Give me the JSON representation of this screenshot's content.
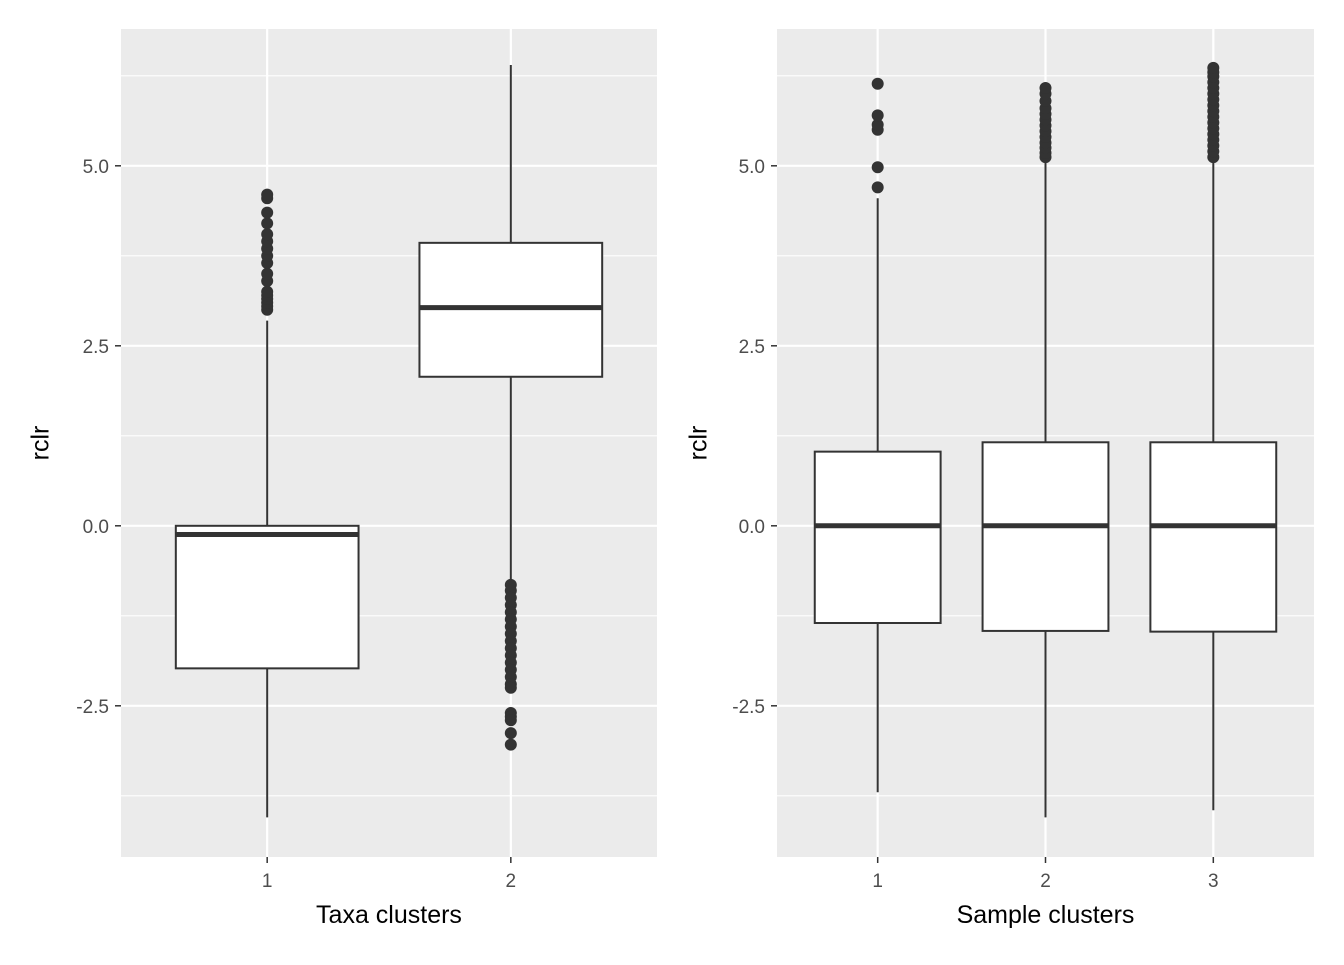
{
  "chart_data": [
    {
      "type": "boxplot",
      "xlabel": "Taxa clusters",
      "ylabel": "rclr",
      "ylim": [
        -4.6,
        6.9
      ],
      "yticks": [
        -2.5,
        0.0,
        2.5,
        5.0
      ],
      "ytick_labels": [
        "-2.5",
        "0.0",
        "2.5",
        "5.0"
      ],
      "categories": [
        "1",
        "2"
      ],
      "boxes": [
        {
          "category": "1",
          "q1": -1.98,
          "median": -0.12,
          "q3": 0.0,
          "whisker_low": -4.05,
          "whisker_high": 2.85,
          "outliers": [
            3.0,
            3.05,
            3.1,
            3.15,
            3.2,
            3.25,
            3.4,
            3.5,
            3.65,
            3.75,
            3.85,
            3.95,
            4.05,
            4.2,
            4.35,
            4.55,
            4.6
          ]
        },
        {
          "category": "2",
          "q1": 2.07,
          "median": 3.03,
          "q3": 3.93,
          "whisker_low": -0.75,
          "whisker_high": 6.4,
          "outliers": [
            -0.82,
            -0.9,
            -1.0,
            -1.1,
            -1.2,
            -1.3,
            -1.4,
            -1.5,
            -1.6,
            -1.7,
            -1.8,
            -1.9,
            -2.0,
            -2.1,
            -2.2,
            -2.25,
            -2.6,
            -2.65,
            -2.7,
            -2.88,
            -3.04
          ]
        }
      ],
      "grid": true
    },
    {
      "type": "boxplot",
      "xlabel": "Sample clusters",
      "ylabel": "rclr",
      "ylim": [
        -4.6,
        6.9
      ],
      "yticks": [
        -2.5,
        0.0,
        2.5,
        5.0
      ],
      "ytick_labels": [
        "-2.5",
        "0.0",
        "2.5",
        "5.0"
      ],
      "categories": [
        "1",
        "2",
        "3"
      ],
      "boxes": [
        {
          "category": "1",
          "q1": -1.35,
          "median": 0.0,
          "q3": 1.03,
          "whisker_low": -3.7,
          "whisker_high": 4.55,
          "outliers": [
            4.7,
            4.98,
            5.5,
            5.57,
            5.7,
            6.14
          ]
        },
        {
          "category": "2",
          "q1": -1.46,
          "median": 0.0,
          "q3": 1.16,
          "whisker_low": -4.05,
          "whisker_high": 5.05,
          "outliers": [
            5.12,
            5.18,
            5.25,
            5.32,
            5.4,
            5.48,
            5.56,
            5.64,
            5.72,
            5.8,
            5.9,
            6.0,
            6.08
          ]
        },
        {
          "category": "3",
          "q1": -1.47,
          "median": 0.0,
          "q3": 1.16,
          "whisker_low": -3.95,
          "whisker_high": 5.05,
          "outliers": [
            5.12,
            5.2,
            5.28,
            5.36,
            5.44,
            5.52,
            5.6,
            5.68,
            5.76,
            5.84,
            5.92,
            6.0,
            6.08,
            6.16,
            6.24,
            6.3,
            6.36
          ]
        }
      ],
      "grid": true
    }
  ],
  "colors": {
    "panel_background": "#ebebeb",
    "grid": "#ffffff",
    "box_fill": "#ffffff",
    "box_line": "#333333",
    "outlier": "#333333"
  }
}
